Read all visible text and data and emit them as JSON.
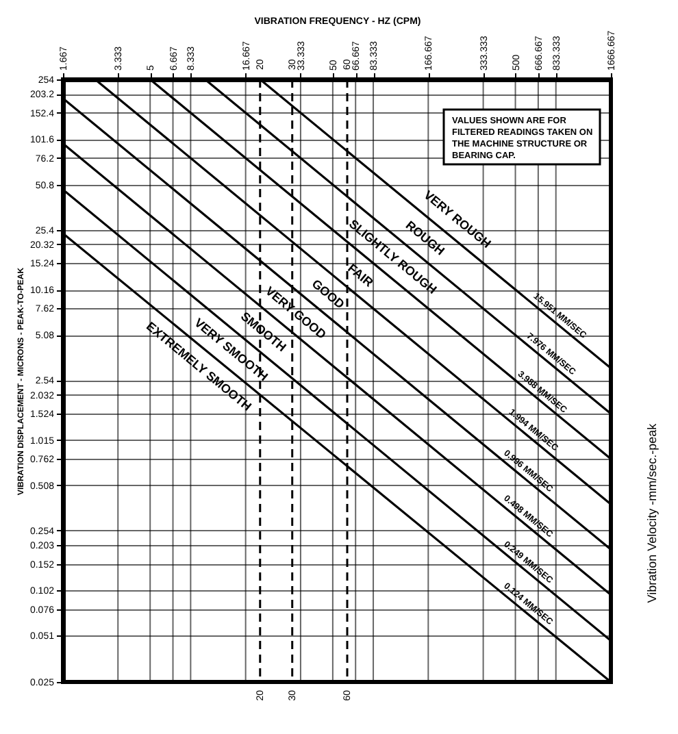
{
  "chart_data": {
    "type": "line",
    "xlabel": "VIBRATION FREQUENCY - HZ (CPM)",
    "ylabel": "VIBRATION DISPLACEMENT - MICRONS - PEAK-TO-PEAK",
    "log": "xy",
    "xlim": [
      1.667,
      1666.667
    ],
    "xticks": [
      1.667,
      3.333,
      5,
      6.667,
      8.333,
      16.667,
      33.333,
      50,
      66.667,
      83.333,
      166.667,
      333.333,
      500,
      666.667,
      833.333,
      1666.667
    ],
    "ylim": [
      0.025,
      254
    ],
    "yticks": [
      254,
      203.2,
      152.4,
      101.6,
      76.2,
      50.8,
      25.4,
      20.32,
      15.24,
      10.16,
      7.62,
      5.08,
      2.54,
      2.032,
      1.524,
      1.015,
      0.762,
      0.508,
      0.254,
      0.203,
      0.152,
      0.102,
      0.076,
      0.051,
      0.025
    ],
    "grid": true,
    "series": [
      {
        "name": "15.951 MM/SEC",
        "color": "#000000",
        "x": [
          20,
          1666.667
        ],
        "values": [
          254,
          3.05
        ]
      },
      {
        "name": "7.976 MM/SEC",
        "color": "#000000",
        "x": [
          10,
          1666.667
        ],
        "values": [
          254,
          1.52
        ]
      },
      {
        "name": "3.988 MM/SEC",
        "color": "#000000",
        "x": [
          5,
          1666.667
        ],
        "values": [
          254,
          0.76
        ]
      },
      {
        "name": "1.994 MM/SEC",
        "color": "#000000",
        "x": [
          2.5,
          1666.667
        ],
        "values": [
          254,
          0.38
        ]
      },
      {
        "name": "0.996 MM/SEC",
        "color": "#000000",
        "x": [
          1.667,
          1666.667
        ],
        "values": [
          190,
          0.19
        ]
      },
      {
        "name": "0.498 MM/SEC",
        "color": "#000000",
        "x": [
          1.667,
          1666.667
        ],
        "values": [
          95,
          0.095
        ]
      },
      {
        "name": "0.249 MM/SEC",
        "color": "#000000",
        "x": [
          1.667,
          1666.667
        ],
        "values": [
          47,
          0.047
        ]
      },
      {
        "name": "0.124 MM/SEC",
        "color": "#000000",
        "x": [
          1.667,
          1666.667
        ],
        "values": [
          24,
          0.025
        ]
      }
    ],
    "ref_lines": [
      {
        "axis": "x",
        "value": 20,
        "label": "20",
        "line_style": "dashed"
      },
      {
        "axis": "x",
        "value": 30,
        "label": "30",
        "line_style": "dashed"
      },
      {
        "axis": "x",
        "value": 60,
        "label": "60",
        "line_style": "dashed"
      }
    ],
    "annotations": [
      "VALUES SHOWN ARE FOR\nFILTERED READINGS TAKEN ON\nTHE MACHINE STRUCTURE OR\nBEARING CAP.",
      "Vibration Velocity -mm/sec.-peak",
      "VERY ROUGH",
      "ROUGH",
      "SLIGHTLY ROUGH",
      "FAIR",
      "GOOD",
      "VERY GOOD",
      "SMOOTH",
      "VERY SMOOTH",
      "EXTREMELY SMOOTH"
    ]
  }
}
